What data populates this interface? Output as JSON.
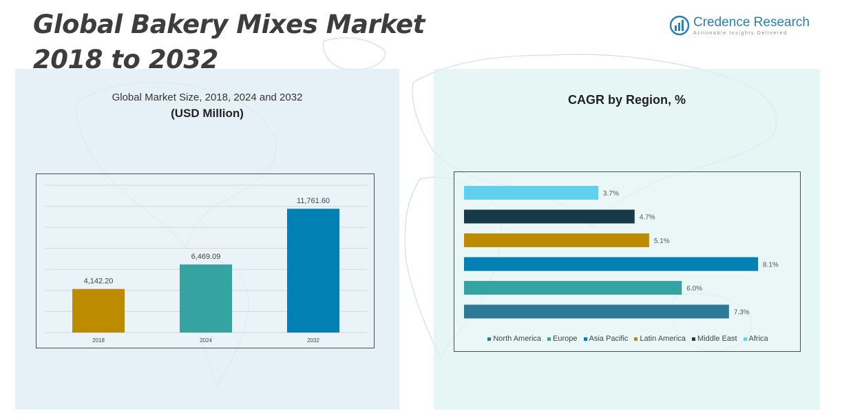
{
  "title": {
    "line1": "Global Bakery Mixes Market",
    "line2": "2018 to 2032"
  },
  "logo": {
    "brand": "Credence Research",
    "tagline": "Actionable Insights Delivered"
  },
  "left_panel": {
    "subtitle": "Global Market Size, 2018, 2024 and 2032",
    "unit": "(USD Million)"
  },
  "right_panel": {
    "title": "CAGR by Region, %"
  },
  "colors": {
    "accent_blue": "#2a7fb5",
    "gold": "#bd8b00",
    "teal": "#34a3a1",
    "blue": "#0080b3",
    "dark_teal": "#173a49",
    "sky": "#63cfee",
    "steel": "#2e7898"
  },
  "chart_data": [
    {
      "type": "bar",
      "categories": [
        "2018",
        "2024",
        "2032"
      ],
      "values": [
        4142.2,
        6469.09,
        11761.6
      ],
      "labels": [
        "4,142.20",
        "6,469.09",
        "11,761.60"
      ],
      "colors": [
        "#bd8b00",
        "#34a3a1",
        "#0080b3"
      ],
      "ylim": [
        0,
        14000
      ],
      "grid": true
    },
    {
      "type": "bar",
      "orientation": "horizontal",
      "categories": [
        "Africa",
        "Middle East",
        "Latin America",
        "Asia Pacific",
        "Europe",
        "North America"
      ],
      "values": [
        3.7,
        4.7,
        5.1,
        8.1,
        6.0,
        7.3
      ],
      "labels": [
        "3.7%",
        "4.7%",
        "5.1%",
        "8.1%",
        "6.0%",
        "7.3%"
      ],
      "colors": [
        "#63cfee",
        "#173a49",
        "#bd8b00",
        "#0080b3",
        "#34a3a1",
        "#2e7898"
      ],
      "xlim": [
        0,
        8.1
      ],
      "legend": {
        "placement": "bottom",
        "entries": [
          {
            "name": "North America",
            "color": "#2e7898"
          },
          {
            "name": "Europe",
            "color": "#34a3a1"
          },
          {
            "name": "Asia Pacific",
            "color": "#0080b3"
          },
          {
            "name": "Latin America",
            "color": "#bd8b00"
          },
          {
            "name": "Middle East",
            "color": "#173a49"
          },
          {
            "name": "Africa",
            "color": "#63cfee"
          }
        ]
      }
    }
  ]
}
